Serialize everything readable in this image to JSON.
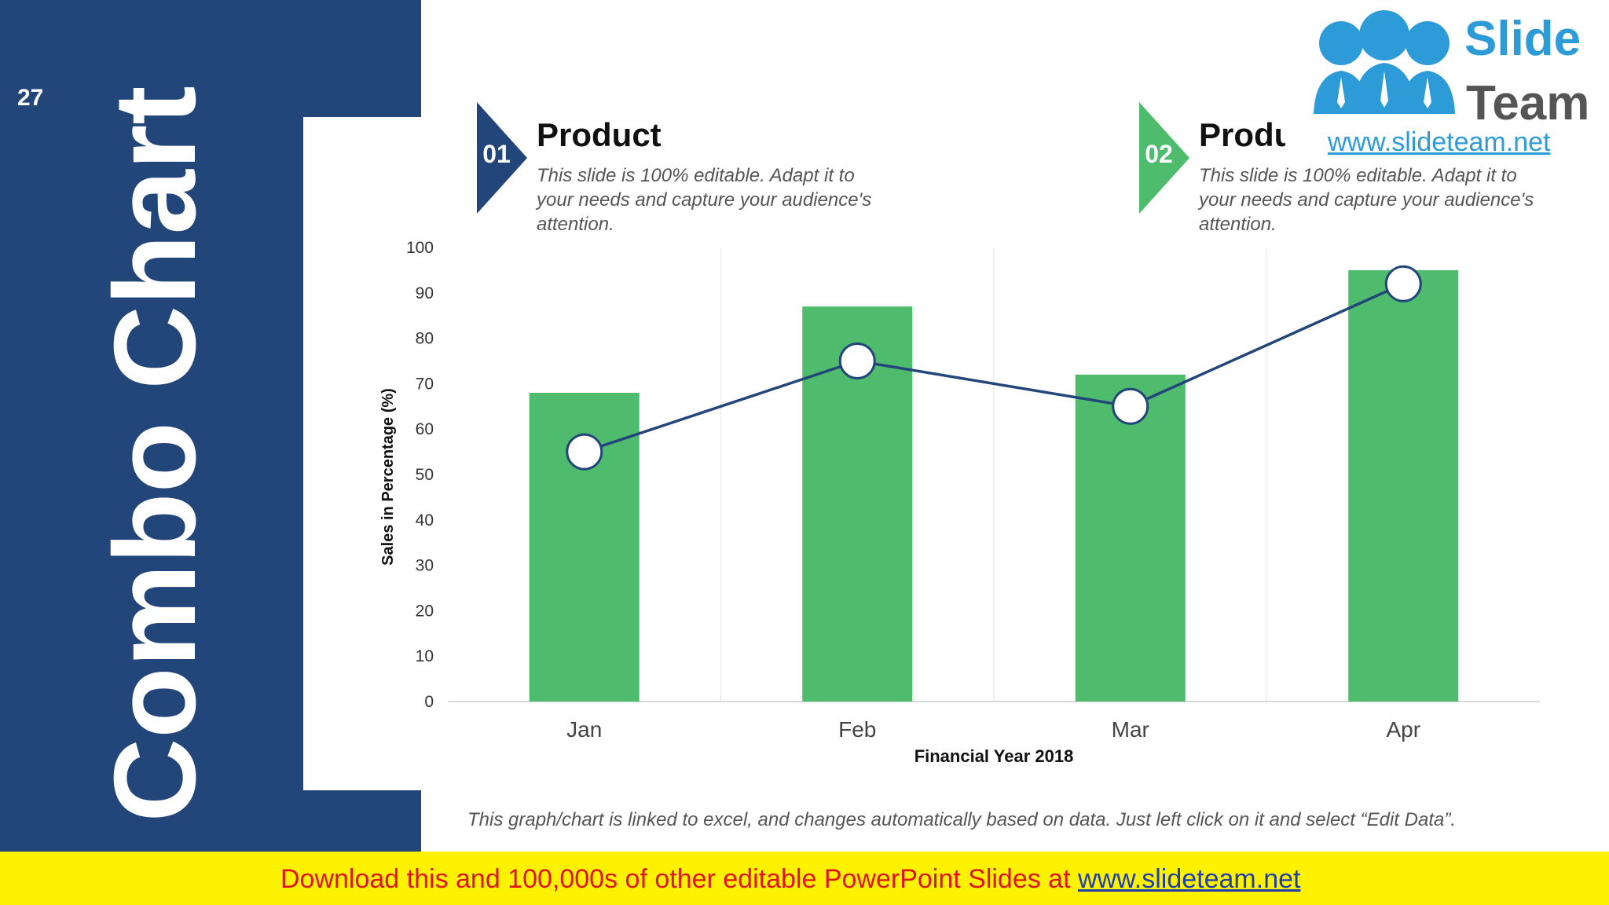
{
  "slide": {
    "number": "27",
    "title": "Combo Chart"
  },
  "products": [
    {
      "num": "01",
      "title": "Product",
      "desc_lines": [
        "This slide is 100% editable. Adapt it to",
        "your needs and capture your audience's",
        "attention."
      ],
      "color": "#22457a"
    },
    {
      "num": "02",
      "title": "Product",
      "desc_lines": [
        "This slide is 100% editable. Adapt it to",
        "your needs and capture your audience's",
        "attention."
      ],
      "color": "#4fbb6c"
    }
  ],
  "logo": {
    "line1": "Slide",
    "line2": "Team",
    "url": "www.slideteam.net",
    "color": "#2d9bd8"
  },
  "note": "This graph/chart is linked to excel, and changes automatically based on data. Just left click on it and select “Edit Data”.",
  "banner": {
    "text": "Download this and 100,000s of other editable PowerPoint Slides at ",
    "link": "www.slideteam.net"
  },
  "colors": {
    "navy": "#22457a",
    "green": "#4fbb6c",
    "yellow": "#fff200",
    "red": "#e0151b"
  },
  "chart_data": {
    "type": "bar",
    "categories": [
      "Jan",
      "Feb",
      "Mar",
      "Apr"
    ],
    "series": [
      {
        "type": "bar",
        "values": [
          68,
          87,
          72,
          95
        ],
        "color": "#4fbb6c"
      },
      {
        "type": "line",
        "values": [
          55,
          75,
          65,
          92
        ],
        "color": "#22457a"
      }
    ],
    "xlabel": "Financial Year 2018",
    "ylabel": "Sales in Percentage (%)",
    "ylim": [
      0,
      100
    ],
    "yticks": [
      0,
      10,
      20,
      30,
      40,
      50,
      60,
      70,
      80,
      90,
      100
    ],
    "grid": "vertical"
  }
}
